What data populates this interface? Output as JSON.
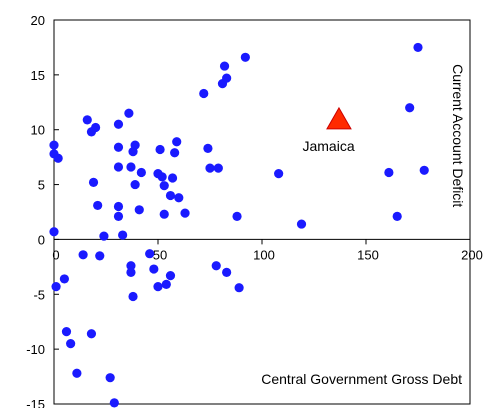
{
  "chart_data": {
    "type": "scatter",
    "xlabel": "Central Government Gross Debt",
    "ylabel": "Current Account Deficit",
    "xlim": [
      0,
      200
    ],
    "ylim": [
      -15,
      20
    ],
    "xticks": [
      0,
      50,
      100,
      150,
      200
    ],
    "yticks": [
      -15,
      -10,
      -5,
      0,
      5,
      10,
      15,
      20
    ],
    "grid": false,
    "legend": "none",
    "colors": {
      "points": "#1a1aff",
      "highlight": "#ff2a00",
      "highlight_edge": "#cc0000",
      "frame": "#000000"
    },
    "series": [
      {
        "name": "",
        "marker": "circle",
        "points": [
          [
            0,
            8.6
          ],
          [
            0,
            7.8
          ],
          [
            2,
            7.4
          ],
          [
            0,
            0.7
          ],
          [
            1,
            -4.3
          ],
          [
            5,
            -3.6
          ],
          [
            6,
            -8.4
          ],
          [
            8,
            -9.5
          ],
          [
            11,
            -12.2
          ],
          [
            14,
            -1.4
          ],
          [
            16,
            10.9
          ],
          [
            18,
            9.8
          ],
          [
            20,
            10.2
          ],
          [
            19,
            5.2
          ],
          [
            21,
            3.1
          ],
          [
            22,
            -1.5
          ],
          [
            24,
            0.3
          ],
          [
            18,
            -8.6
          ],
          [
            27,
            -12.6
          ],
          [
            29,
            -14.9
          ],
          [
            31,
            10.5
          ],
          [
            31,
            8.4
          ],
          [
            31,
            6.6
          ],
          [
            31,
            3.0
          ],
          [
            31,
            2.1
          ],
          [
            33,
            0.4
          ],
          [
            36,
            11.5
          ],
          [
            38,
            8.0
          ],
          [
            39,
            8.6
          ],
          [
            37,
            6.6
          ],
          [
            39,
            5.0
          ],
          [
            41,
            2.7
          ],
          [
            42,
            6.1
          ],
          [
            37,
            -2.4
          ],
          [
            37,
            -3.0
          ],
          [
            38,
            -5.2
          ],
          [
            46,
            -1.3
          ],
          [
            48,
            -2.7
          ],
          [
            50,
            -4.3
          ],
          [
            51,
            8.2
          ],
          [
            50,
            6.0
          ],
          [
            52,
            5.7
          ],
          [
            53,
            4.9
          ],
          [
            53,
            2.3
          ],
          [
            54,
            -4.1
          ],
          [
            56,
            -3.3
          ],
          [
            57,
            5.6
          ],
          [
            56,
            4.0
          ],
          [
            58,
            7.9
          ],
          [
            59,
            8.9
          ],
          [
            60,
            3.8
          ],
          [
            63,
            2.4
          ],
          [
            72,
            13.3
          ],
          [
            74,
            8.3
          ],
          [
            75,
            6.5
          ],
          [
            79,
            6.5
          ],
          [
            78,
            -2.4
          ],
          [
            81,
            14.2
          ],
          [
            82,
            15.8
          ],
          [
            83,
            14.7
          ],
          [
            83,
            -3.0
          ],
          [
            88,
            2.1
          ],
          [
            89,
            -4.4
          ],
          [
            92,
            16.6
          ],
          [
            108,
            6.0
          ],
          [
            119,
            1.4
          ],
          [
            161,
            6.1
          ],
          [
            165,
            2.1
          ],
          [
            171,
            12.0
          ],
          [
            175,
            17.5
          ],
          [
            178,
            6.3
          ]
        ]
      },
      {
        "name": "Jamaica",
        "marker": "triangle",
        "points": [
          [
            137,
            10.9
          ]
        ]
      }
    ],
    "annotations": [
      {
        "text": "Jamaica",
        "x": 132,
        "y": 8.5
      }
    ]
  }
}
